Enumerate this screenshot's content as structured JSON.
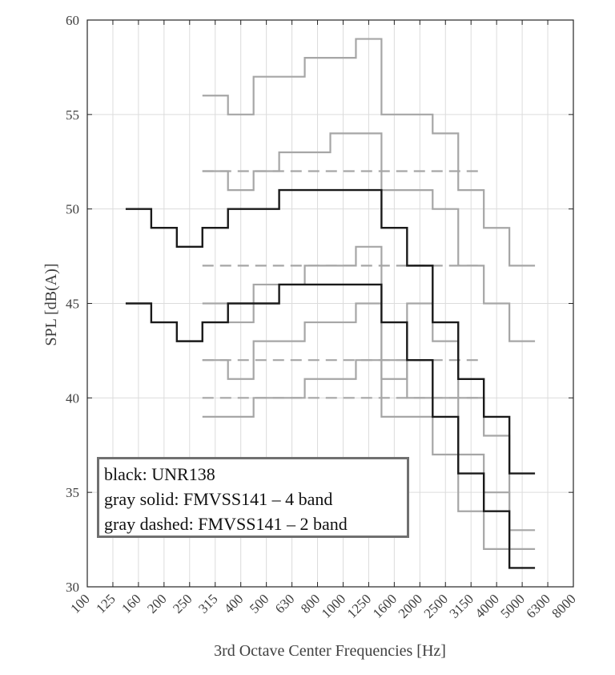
{
  "chart_data": {
    "type": "line",
    "step": true,
    "title": "",
    "xlabel": "3rd Octave Center Frequencies [Hz]",
    "ylabel": "SPL [dB(A)]",
    "ylim": [
      30,
      60
    ],
    "yticks": [
      30,
      35,
      40,
      45,
      50,
      55,
      60
    ],
    "x_categories": [
      "100",
      "125",
      "160",
      "200",
      "250",
      "315",
      "400",
      "500",
      "630",
      "800",
      "1000",
      "1250",
      "1600",
      "2000",
      "2500",
      "3150",
      "4000",
      "5000",
      "6300",
      "8000"
    ],
    "legend": [
      "black: UNR138",
      "gray solid: FMVSS141 – 4 band",
      "gray dashed: FMVSS141 – 2 band"
    ],
    "legend_position": "bottom-left",
    "grid": true,
    "series": [
      {
        "name": "UNR138 upper",
        "style": "black",
        "start": "125",
        "values": [
          50,
          49,
          48,
          49,
          50,
          50,
          51,
          51,
          51,
          51,
          49,
          47,
          44,
          41,
          39,
          36
        ]
      },
      {
        "name": "UNR138 lower",
        "style": "black",
        "start": "125",
        "values": [
          45,
          44,
          43,
          44,
          45,
          45,
          46,
          46,
          46,
          46,
          44,
          42,
          39,
          36,
          34,
          31
        ]
      },
      {
        "name": "FMVSS141 4 band 1",
        "style": "gray-solid",
        "start": "250",
        "values": [
          56,
          55,
          57,
          57,
          58,
          58,
          59,
          55,
          55,
          54,
          51,
          49,
          47
        ]
      },
      {
        "name": "FMVSS141 4 band 2",
        "style": "gray-solid",
        "start": "250",
        "values": [
          52,
          51,
          52,
          53,
          53,
          54,
          54,
          51,
          51,
          50,
          47,
          45,
          43
        ]
      },
      {
        "name": "FMVSS141 4 band 3",
        "style": "gray-solid",
        "start": "250",
        "values": [
          45,
          44,
          46,
          46,
          47,
          47,
          48,
          41,
          45,
          43,
          40,
          38,
          33
        ]
      },
      {
        "name": "FMVSS141 4 band 4",
        "style": "gray-solid",
        "start": "250",
        "values": [
          42,
          41,
          43,
          43,
          44,
          44,
          45,
          39,
          39,
          37,
          34,
          32
        ]
      },
      {
        "name": "FMVSS141 4 band 5",
        "style": "gray-solid",
        "start": "250",
        "values": [
          39,
          39,
          40,
          40,
          41,
          41,
          42,
          42,
          40,
          40,
          37,
          35,
          32
        ]
      },
      {
        "name": "FMVSS141 2 band 1",
        "style": "gray-dashed",
        "start": "250",
        "values": [
          52,
          52,
          52,
          52,
          52,
          52,
          52,
          52,
          52,
          52,
          52
        ]
      },
      {
        "name": "FMVSS141 2 band 2",
        "style": "gray-dashed",
        "start": "250",
        "values": [
          47,
          47,
          47,
          47,
          47,
          47,
          47,
          47,
          47,
          47,
          47
        ]
      },
      {
        "name": "FMVSS141 2 band 3",
        "style": "gray-dashed",
        "start": "250",
        "values": [
          42,
          42,
          42,
          42,
          42,
          42,
          42,
          42,
          42,
          42,
          42
        ]
      },
      {
        "name": "FMVSS141 2 band 4",
        "style": "gray-dashed",
        "start": "250",
        "values": [
          40,
          40,
          40,
          40,
          40,
          40,
          40,
          40,
          40,
          40,
          40
        ]
      }
    ],
    "colors": {
      "black": "#1a1a1a",
      "gray": "#a6a6a6",
      "grid": "#dcdcdc",
      "axis": "#262626"
    }
  }
}
